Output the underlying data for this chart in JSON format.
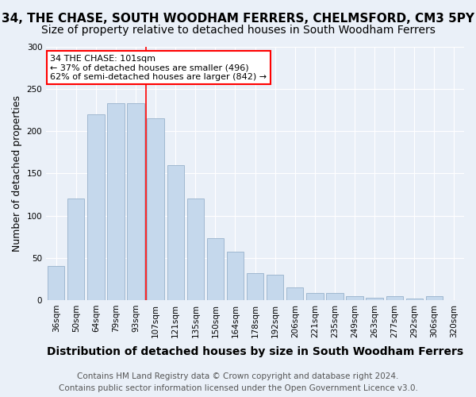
{
  "title": "34, THE CHASE, SOUTH WOODHAM FERRERS, CHELMSFORD, CM3 5PY",
  "subtitle": "Size of property relative to detached houses in South Woodham Ferrers",
  "xlabel": "Distribution of detached houses by size in South Woodham Ferrers",
  "ylabel": "Number of detached properties",
  "footer_line1": "Contains HM Land Registry data © Crown copyright and database right 2024.",
  "footer_line2": "Contains public sector information licensed under the Open Government Licence v3.0.",
  "bar_labels": [
    "36sqm",
    "50sqm",
    "64sqm",
    "79sqm",
    "93sqm",
    "107sqm",
    "121sqm",
    "135sqm",
    "150sqm",
    "164sqm",
    "178sqm",
    "192sqm",
    "206sqm",
    "221sqm",
    "235sqm",
    "249sqm",
    "263sqm",
    "277sqm",
    "292sqm",
    "306sqm",
    "320sqm"
  ],
  "bar_values": [
    40,
    120,
    220,
    233,
    233,
    215,
    160,
    120,
    73,
    57,
    32,
    30,
    15,
    8,
    8,
    5,
    3,
    5,
    2,
    5,
    0
  ],
  "bar_color": "#c5d8ec",
  "bar_edge_color": "#a0b8d0",
  "annotation_text": "34 THE CHASE: 101sqm\n← 37% of detached houses are smaller (496)\n62% of semi-detached houses are larger (842) →",
  "annotation_box_color": "white",
  "annotation_box_edgecolor": "red",
  "vline_x": 4.5,
  "vline_color": "red",
  "ylim": [
    0,
    300
  ],
  "yticks": [
    0,
    50,
    100,
    150,
    200,
    250,
    300
  ],
  "background_color": "#eaf0f8",
  "plot_bg_color": "#eaf0f8",
  "title_fontsize": 11,
  "subtitle_fontsize": 10,
  "xlabel_fontsize": 10,
  "ylabel_fontsize": 9,
  "tick_fontsize": 7.5,
  "footer_fontsize": 7.5
}
